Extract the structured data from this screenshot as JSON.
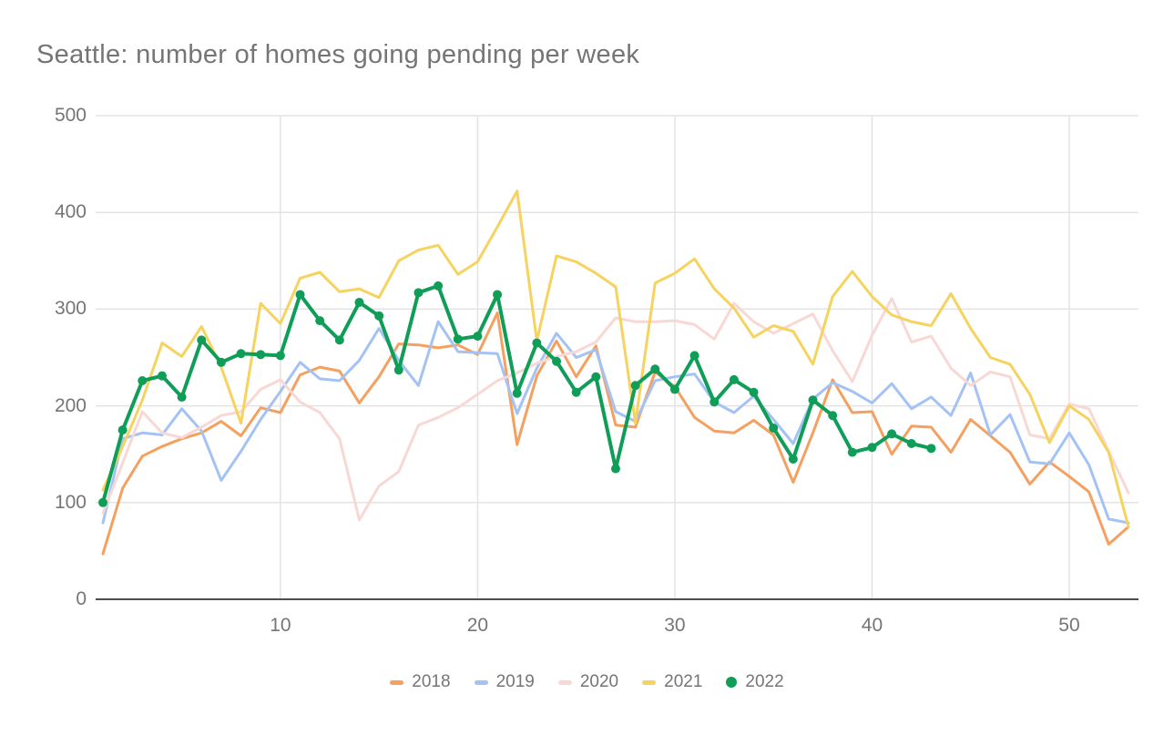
{
  "title": "Seattle: number of homes going pending per week",
  "colors": {
    "background": "#ffffff",
    "title_text": "#757575",
    "axis_text": "#757575",
    "gridline": "#e3e3e3",
    "axis_line": "#4d4d4d"
  },
  "chart_data": {
    "type": "line",
    "title": "Seattle: number of homes going pending per week",
    "xlabel": "",
    "ylabel": "",
    "x_unit": "week number",
    "xlim": [
      1,
      53
    ],
    "ylim": [
      0,
      500
    ],
    "x_ticks": [
      10,
      20,
      30,
      40,
      50
    ],
    "y_ticks": [
      0,
      100,
      200,
      300,
      400,
      500
    ],
    "grid": true,
    "legend_position": "bottom-center",
    "weeks_start": 1,
    "series": [
      {
        "name": "2018",
        "color": "#F6A05F",
        "marker": false,
        "values": [
          47,
          115,
          148,
          158,
          166,
          172,
          184,
          169,
          198,
          193,
          232,
          240,
          236,
          203,
          230,
          264,
          263,
          260,
          263,
          253,
          296,
          160,
          231,
          267,
          230,
          262,
          180,
          178,
          235,
          220,
          188,
          174,
          172,
          185,
          170,
          121,
          172,
          227,
          193,
          194,
          150,
          179,
          178,
          152,
          186,
          169,
          152,
          119,
          142,
          127,
          111,
          57,
          75
        ]
      },
      {
        "name": "2019",
        "color": "#A4C2F4",
        "marker": false,
        "values": [
          79,
          166,
          172,
          170,
          197,
          174,
          123,
          153,
          186,
          215,
          245,
          228,
          226,
          247,
          280,
          247,
          221,
          287,
          256,
          255,
          254,
          192,
          239,
          275,
          250,
          258,
          194,
          184,
          226,
          230,
          233,
          204,
          193,
          210,
          186,
          161,
          207,
          224,
          215,
          203,
          223,
          197,
          209,
          190,
          234,
          170,
          191,
          142,
          140,
          172,
          139,
          83,
          79
        ]
      },
      {
        "name": "2020",
        "color": "#F8D8D5",
        "marker": false,
        "values": [
          89,
          141,
          194,
          172,
          167,
          178,
          190,
          194,
          217,
          227,
          204,
          193,
          166,
          82,
          117,
          132,
          180,
          188,
          198,
          212,
          226,
          234,
          244,
          251,
          256,
          266,
          291,
          287,
          287,
          288,
          284,
          269,
          306,
          287,
          275,
          285,
          295,
          257,
          225,
          273,
          311,
          266,
          272,
          239,
          221,
          235,
          230,
          170,
          166,
          202,
          197,
          153,
          110
        ]
      },
      {
        "name": "2021",
        "color": "#F6D35F",
        "marker": false,
        "values": [
          113,
          158,
          206,
          265,
          251,
          282,
          240,
          182,
          306,
          285,
          332,
          338,
          318,
          321,
          312,
          350,
          361,
          366,
          336,
          349,
          385,
          422,
          267,
          355,
          349,
          337,
          323,
          182,
          327,
          337,
          352,
          321,
          301,
          271,
          283,
          277,
          243,
          313,
          339,
          313,
          294,
          287,
          283,
          316,
          280,
          250,
          243,
          212,
          162,
          200,
          186,
          152,
          75
        ]
      },
      {
        "name": "2022",
        "color": "#0F9D58",
        "marker": true,
        "values": [
          100,
          175,
          226,
          231,
          209,
          268,
          245,
          254,
          253,
          252,
          315,
          288,
          268,
          307,
          293,
          237,
          317,
          324,
          269,
          272,
          315,
          213,
          265,
          246,
          214,
          230,
          135,
          221,
          238,
          217,
          252,
          204,
          227,
          214,
          177,
          145,
          206,
          190,
          152,
          157,
          171,
          161,
          156
        ]
      }
    ]
  }
}
